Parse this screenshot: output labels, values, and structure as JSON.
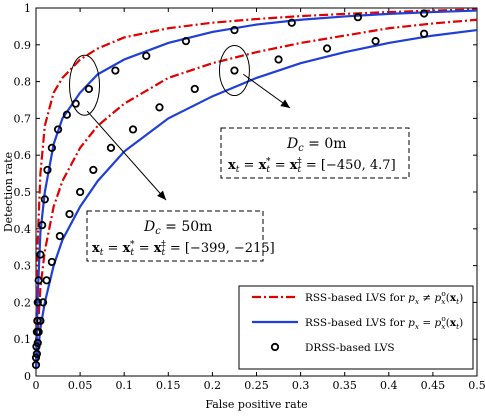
{
  "chart_data": {
    "type": "line",
    "title": "",
    "xlabel": "False positive rate",
    "ylabel": "Detection rate",
    "xlim": [
      0,
      0.5
    ],
    "ylim": [
      0,
      1
    ],
    "x_ticks": [
      "0",
      "0.05",
      "0.1",
      "0.15",
      "0.2",
      "0.25",
      "0.3",
      "0.35",
      "0.4",
      "0.45",
      "0.5"
    ],
    "y_ticks": [
      "0",
      "0.1",
      "0.2",
      "0.3",
      "0.4",
      "0.5",
      "0.6",
      "0.7",
      "0.8",
      "0.9",
      "1"
    ],
    "grid": false,
    "legend_placement": "bottom-right",
    "legend": [
      "RSS-based LVS for p_x ≠ p_x^o(x_t)",
      "RSS-based LVS for p_x = p_x^o(x_t)",
      "DRSS-based LVS"
    ],
    "series": [
      {
        "name": "RSS-based LVS for p_x ≠ p_x^o(x_t)",
        "style": "dashdot",
        "color": "#e00000",
        "scenario": "D_c = 0m",
        "x": [
          0,
          0.002,
          0.005,
          0.01,
          0.02,
          0.03,
          0.05,
          0.07,
          0.1,
          0.15,
          0.2,
          0.25,
          0.3,
          0.35,
          0.4,
          0.45,
          0.5
        ],
        "y": [
          0.08,
          0.37,
          0.55,
          0.68,
          0.77,
          0.81,
          0.86,
          0.89,
          0.92,
          0.945,
          0.96,
          0.97,
          0.978,
          0.984,
          0.989,
          0.993,
          0.996
        ]
      },
      {
        "name": "RSS-based LVS for p_x ≠ p_x^o(x_t)",
        "style": "dashdot",
        "color": "#e00000",
        "scenario": "D_c = 50m",
        "x": [
          0,
          0.002,
          0.005,
          0.01,
          0.02,
          0.03,
          0.05,
          0.07,
          0.1,
          0.15,
          0.2,
          0.25,
          0.3,
          0.35,
          0.4,
          0.45,
          0.5
        ],
        "y": [
          0.03,
          0.12,
          0.24,
          0.34,
          0.46,
          0.53,
          0.62,
          0.68,
          0.74,
          0.81,
          0.85,
          0.88,
          0.905,
          0.925,
          0.945,
          0.958,
          0.968
        ]
      },
      {
        "name": "RSS-based LVS for p_x = p_x^o(x_t)",
        "style": "solid",
        "color": "#1f3fd6",
        "scenario": "D_c = 0m",
        "x": [
          0,
          0.002,
          0.005,
          0.01,
          0.02,
          0.03,
          0.05,
          0.07,
          0.1,
          0.15,
          0.2,
          0.25,
          0.3,
          0.35,
          0.4,
          0.45,
          0.5
        ],
        "y": [
          0.02,
          0.22,
          0.39,
          0.5,
          0.63,
          0.7,
          0.77,
          0.82,
          0.86,
          0.905,
          0.935,
          0.955,
          0.968,
          0.977,
          0.984,
          0.989,
          0.993
        ]
      },
      {
        "name": "RSS-based LVS for p_x = p_x^o(x_t)",
        "style": "solid",
        "color": "#1f3fd6",
        "scenario": "D_c = 50m",
        "x": [
          0,
          0.002,
          0.005,
          0.01,
          0.02,
          0.03,
          0.05,
          0.07,
          0.1,
          0.15,
          0.2,
          0.25,
          0.3,
          0.35,
          0.4,
          0.45,
          0.5
        ],
        "y": [
          0.02,
          0.06,
          0.13,
          0.2,
          0.3,
          0.37,
          0.46,
          0.53,
          0.61,
          0.7,
          0.76,
          0.81,
          0.85,
          0.88,
          0.905,
          0.925,
          0.94
        ]
      },
      {
        "name": "DRSS-based LVS",
        "style": "markers",
        "color": "#000000",
        "scenario": "D_c = 0m",
        "x": [
          0.0,
          0.0005,
          0.001,
          0.0015,
          0.002,
          0.003,
          0.005,
          0.007,
          0.01,
          0.013,
          0.018,
          0.025,
          0.035,
          0.045,
          0.06,
          0.09,
          0.125,
          0.17,
          0.225,
          0.29,
          0.365,
          0.44
        ],
        "y": [
          0.05,
          0.08,
          0.12,
          0.15,
          0.2,
          0.26,
          0.33,
          0.41,
          0.48,
          0.56,
          0.62,
          0.67,
          0.71,
          0.74,
          0.78,
          0.83,
          0.87,
          0.91,
          0.94,
          0.96,
          0.975,
          0.985
        ]
      },
      {
        "name": "DRSS-based LVS",
        "style": "markers",
        "color": "#000000",
        "scenario": "D_c = 50m",
        "x": [
          0.0,
          0.001,
          0.002,
          0.003,
          0.005,
          0.008,
          0.012,
          0.018,
          0.027,
          0.038,
          0.05,
          0.065,
          0.085,
          0.11,
          0.14,
          0.18,
          0.225,
          0.275,
          0.33,
          0.385,
          0.44
        ],
        "y": [
          0.03,
          0.06,
          0.09,
          0.12,
          0.15,
          0.2,
          0.26,
          0.31,
          0.38,
          0.44,
          0.5,
          0.56,
          0.62,
          0.67,
          0.73,
          0.78,
          0.83,
          0.86,
          0.89,
          0.91,
          0.93
        ]
      }
    ],
    "annotations": [
      {
        "label": "D_c = 0m",
        "line1_parts": [
          "D",
          "c",
          " = 0m"
        ],
        "line2_parts": [
          "x",
          "t",
          " = ",
          "x",
          "t",
          "*",
          " = ",
          "x",
          "t",
          "‡",
          " = [−450, 4.7]"
        ]
      },
      {
        "label": "D_c = 50m",
        "line1_parts": [
          "D",
          "c",
          " = 50m"
        ],
        "line2_parts": [
          "x",
          "t",
          " = ",
          "x",
          "t",
          "*",
          " = ",
          "x",
          "t",
          "‡",
          " = [−399, −215]"
        ]
      }
    ],
    "legend_parts": [
      [
        "RSS-based LVS for ",
        "p",
        "x",
        " ≠ ",
        "p",
        "x",
        "o",
        "(",
        "x",
        "t",
        ")"
      ],
      [
        "RSS-based LVS for ",
        "p",
        "x",
        " = ",
        "p",
        "x",
        "o",
        "(",
        "x",
        "t",
        ")"
      ],
      [
        "DRSS-based LVS"
      ]
    ]
  }
}
